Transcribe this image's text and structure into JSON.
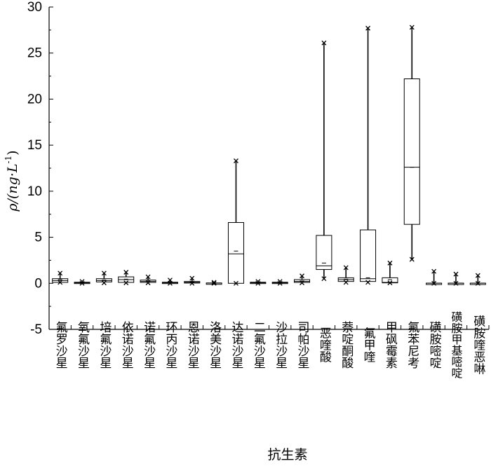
{
  "chart_data": {
    "type": "box",
    "title": "",
    "xlabel": "抗生素",
    "ylabel_main": "ρ/(ng·L",
    "ylabel_sup": "-1",
    "ylabel_tail": ")",
    "ylim": [
      -5,
      30
    ],
    "yticks": [
      -5,
      0,
      5,
      10,
      15,
      20,
      25,
      30
    ],
    "grid": false,
    "categories": [
      "氟罗沙星",
      "氧氟沙星",
      "培氟沙星",
      "依诺沙星",
      "诺氟沙星",
      "环丙沙星",
      "恩诺沙星",
      "洛美沙星",
      "达诺沙星",
      "二氟沙星",
      "沙拉沙星",
      "司帕沙星",
      "恶喹酸",
      "萘啶酮酸",
      "氟甲喹",
      "甲砜霉素",
      "氟苯尼考",
      "磺胺嘧啶",
      "磺胺甲基嘧啶",
      "磺胺喹恶啉"
    ],
    "boxes": [
      {
        "min": 0.1,
        "q1": 0.1,
        "median": 0.3,
        "q3": 0.5,
        "max": 1.1,
        "mean": 0.4
      },
      {
        "min": 0.0,
        "q1": 0.02,
        "median": 0.05,
        "q3": 0.12,
        "max": 0.2,
        "mean": 0.08
      },
      {
        "min": 0.05,
        "q1": 0.15,
        "median": 0.3,
        "q3": 0.5,
        "max": 1.1,
        "mean": 0.35
      },
      {
        "min": 0.05,
        "q1": 0.1,
        "median": 0.4,
        "q3": 0.7,
        "max": 1.2,
        "mean": 0.45
      },
      {
        "min": 0.05,
        "q1": 0.1,
        "median": 0.2,
        "q3": 0.35,
        "max": 0.7,
        "mean": 0.25
      },
      {
        "min": 0.0,
        "q1": 0.02,
        "median": 0.05,
        "q3": 0.12,
        "max": 0.35,
        "mean": 0.1
      },
      {
        "min": 0.0,
        "q1": 0.03,
        "median": 0.1,
        "q3": 0.2,
        "max": 0.55,
        "mean": 0.15
      },
      {
        "min": 0.0,
        "q1": 0.01,
        "median": 0.02,
        "q3": 0.04,
        "max": 0.1,
        "mean": 0.03
      },
      {
        "min": 0.0,
        "q1": 0.0,
        "median": 3.2,
        "q3": 6.6,
        "max": 13.3,
        "mean": 3.5
      },
      {
        "min": 0.0,
        "q1": 0.02,
        "median": 0.05,
        "q3": 0.12,
        "max": 0.2,
        "mean": 0.07
      },
      {
        "min": 0.0,
        "q1": 0.02,
        "median": 0.05,
        "q3": 0.12,
        "max": 0.2,
        "mean": 0.07
      },
      {
        "min": 0.05,
        "q1": 0.1,
        "median": 0.2,
        "q3": 0.4,
        "max": 0.8,
        "mean": 0.25
      },
      {
        "min": 0.5,
        "q1": 1.5,
        "median": 1.9,
        "q3": 5.2,
        "max": 26.1,
        "mean": 2.2
      },
      {
        "min": 0.1,
        "q1": 0.2,
        "median": 0.4,
        "q3": 0.6,
        "max": 1.7,
        "mean": 0.45
      },
      {
        "min": 0.1,
        "q1": 0.2,
        "median": 0.5,
        "q3": 5.8,
        "max": 27.7,
        "mean": 0.6
      },
      {
        "min": 0.05,
        "q1": 0.05,
        "median": 0.1,
        "q3": 0.6,
        "max": 2.2,
        "mean": 0.4
      },
      {
        "min": 2.6,
        "q1": 6.4,
        "median": 12.6,
        "q3": 22.2,
        "max": 27.8,
        "mean": 12.6
      },
      {
        "min": 0.0,
        "q1": 0.0,
        "median": 0.01,
        "q3": 0.02,
        "max": 1.3,
        "mean": 0.02
      },
      {
        "min": 0.0,
        "q1": 0.0,
        "median": 0.01,
        "q3": 0.02,
        "max": 1.0,
        "mean": 0.02
      },
      {
        "min": 0.0,
        "q1": 0.0,
        "median": 0.01,
        "q3": 0.02,
        "max": 0.85,
        "mean": 0.02
      }
    ]
  }
}
